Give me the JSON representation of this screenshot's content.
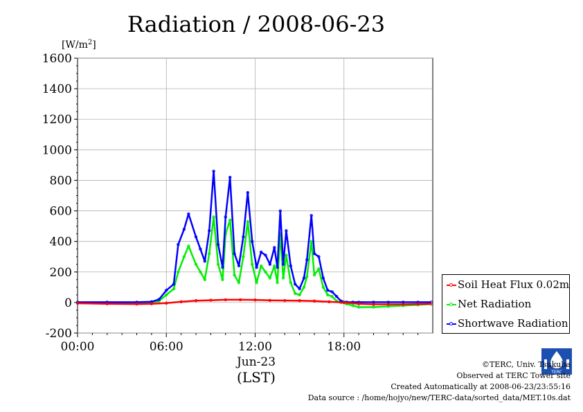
{
  "chart_data": {
    "type": "line",
    "title": "Radiation / 2008-06-23",
    "ylabel": "[W/m²]",
    "xlabel": "Jun-23",
    "xlabel2": "(LST)",
    "ylim": [
      -200,
      1600
    ],
    "xlim": [
      0,
      24
    ],
    "yticks": [
      -200,
      0,
      200,
      400,
      600,
      800,
      1000,
      1200,
      1400,
      1600
    ],
    "ytick_labels": [
      "-200",
      "0",
      "200",
      "400",
      "600",
      "800",
      "1000",
      "1200",
      "1400",
      "1600"
    ],
    "xticks": [
      0,
      6,
      12,
      18
    ],
    "xtick_labels": [
      "00:00",
      "06:00",
      "12:00",
      "18:00"
    ],
    "grid": true,
    "legend_position": "right",
    "series": [
      {
        "name": "Soil Heat Flux 0.02m",
        "color": "#ff0000",
        "x": [
          0,
          2,
          4,
          5,
          6,
          7,
          8,
          9,
          10,
          11,
          12,
          13,
          14,
          15,
          16,
          17,
          18,
          19,
          20,
          21,
          22,
          23,
          23.9
        ],
        "y": [
          -5,
          -8,
          -10,
          -8,
          -4,
          5,
          12,
          15,
          18,
          18,
          17,
          14,
          13,
          12,
          10,
          5,
          0,
          -8,
          -12,
          -12,
          -12,
          -10,
          -8
        ]
      },
      {
        "name": "Net Radiation",
        "color": "#00ee00",
        "x": [
          0,
          2,
          4,
          5,
          5.5,
          6,
          6.5,
          6.8,
          7.2,
          7.5,
          8,
          8.3,
          8.6,
          8.9,
          9.2,
          9.5,
          9.8,
          10.0,
          10.3,
          10.6,
          10.9,
          11.2,
          11.5,
          11.8,
          12.1,
          12.4,
          12.7,
          13.0,
          13.3,
          13.5,
          13.7,
          13.9,
          14.1,
          14.4,
          14.7,
          15.0,
          15.3,
          15.5,
          15.8,
          16.0,
          16.3,
          16.6,
          16.9,
          17.2,
          17.5,
          17.8,
          18.2,
          18.6,
          19,
          20,
          21,
          22,
          23,
          23.9
        ],
        "y": [
          0,
          0,
          -2,
          0,
          10,
          50,
          90,
          200,
          300,
          370,
          250,
          200,
          150,
          320,
          560,
          250,
          150,
          450,
          540,
          180,
          130,
          300,
          530,
          250,
          130,
          240,
          200,
          160,
          240,
          130,
          450,
          160,
          310,
          130,
          60,
          50,
          100,
          170,
          400,
          180,
          220,
          100,
          50,
          40,
          10,
          0,
          -10,
          -20,
          -30,
          -30,
          -25,
          -20,
          -15,
          -10
        ]
      },
      {
        "name": "Shortwave Radiation",
        "color": "#0000ff",
        "x": [
          0,
          2,
          4,
          5,
          5.5,
          6,
          6.5,
          6.8,
          7.2,
          7.5,
          8,
          8.3,
          8.6,
          8.9,
          9.2,
          9.5,
          9.8,
          10.0,
          10.3,
          10.6,
          10.9,
          11.2,
          11.5,
          11.8,
          12.1,
          12.4,
          12.7,
          13.0,
          13.3,
          13.5,
          13.7,
          13.9,
          14.1,
          14.4,
          14.7,
          15.0,
          15.3,
          15.5,
          15.8,
          16.0,
          16.3,
          16.6,
          16.9,
          17.2,
          17.5,
          17.8,
          18.2,
          18.6,
          19,
          20,
          21,
          22,
          23,
          23.9
        ],
        "y": [
          2,
          2,
          2,
          5,
          20,
          80,
          120,
          380,
          480,
          580,
          430,
          350,
          270,
          470,
          860,
          380,
          230,
          560,
          820,
          320,
          240,
          430,
          720,
          400,
          230,
          330,
          310,
          250,
          360,
          230,
          600,
          250,
          470,
          240,
          120,
          90,
          160,
          280,
          570,
          320,
          300,
          160,
          80,
          70,
          40,
          10,
          2,
          2,
          2,
          2,
          2,
          2,
          2,
          2
        ]
      }
    ]
  },
  "credits": [
    "©TERC, Univ. Tsukuba",
    "Observed at TERC Tower site",
    "Created Automatically at 2008-06-23/23:55:16",
    "Data source : /home/hojyo/new/TERC-data/sorted_data/MET.10s.dat"
  ],
  "logo_text": "TERC"
}
